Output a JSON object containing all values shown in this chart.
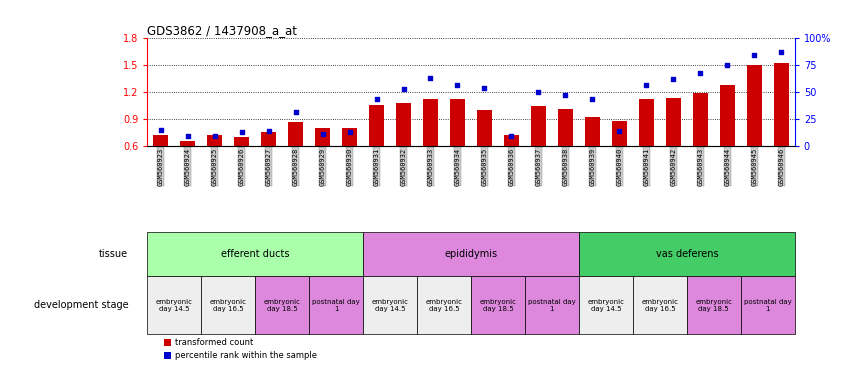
{
  "title": "GDS3862 / 1437908_a_at",
  "samples": [
    "GSM560923",
    "GSM560924",
    "GSM560925",
    "GSM560926",
    "GSM560927",
    "GSM560928",
    "GSM560929",
    "GSM560930",
    "GSM560931",
    "GSM560932",
    "GSM560933",
    "GSM560934",
    "GSM560935",
    "GSM560936",
    "GSM560937",
    "GSM560938",
    "GSM560939",
    "GSM560940",
    "GSM560941",
    "GSM560942",
    "GSM560943",
    "GSM560944",
    "GSM560945",
    "GSM560946"
  ],
  "bar_values": [
    0.72,
    0.65,
    0.72,
    0.7,
    0.76,
    0.87,
    0.8,
    0.8,
    1.06,
    1.08,
    1.12,
    1.12,
    1.0,
    0.72,
    1.05,
    1.01,
    0.92,
    0.88,
    1.12,
    1.13,
    1.19,
    1.28,
    1.5,
    1.52
  ],
  "scatter_values": [
    15,
    9,
    9,
    13,
    14,
    32,
    11,
    13,
    44,
    53,
    63,
    57,
    54,
    9,
    50,
    47,
    44,
    14,
    57,
    62,
    68,
    75,
    85,
    87
  ],
  "ylim_left": [
    0.6,
    1.8
  ],
  "ylim_right": [
    0,
    100
  ],
  "yticks_left": [
    0.6,
    0.9,
    1.2,
    1.5,
    1.8
  ],
  "ytick_labels_left": [
    "0.6",
    "0.9",
    "1.2",
    "1.5",
    "1.8"
  ],
  "yticks_right": [
    0,
    25,
    50,
    75,
    100
  ],
  "ytick_labels_right": [
    "0",
    "25",
    "50",
    "75",
    "100%"
  ],
  "bar_color": "#cc0000",
  "bar_bottom": 0.6,
  "scatter_color": "#0000cc",
  "dot_size": 10,
  "tissue_groups": [
    {
      "label": "efferent ducts",
      "start": 0,
      "end": 8,
      "color": "#aaffaa"
    },
    {
      "label": "epididymis",
      "start": 8,
      "end": 16,
      "color": "#dd88dd"
    },
    {
      "label": "vas deferens",
      "start": 16,
      "end": 24,
      "color": "#44cc66"
    }
  ],
  "dev_stage_groups": [
    {
      "label": "embryonic\nday 14.5",
      "start": 0,
      "end": 2,
      "color": "#eeeeee"
    },
    {
      "label": "embryonic\nday 16.5",
      "start": 2,
      "end": 4,
      "color": "#eeeeee"
    },
    {
      "label": "embryonic\nday 18.5",
      "start": 4,
      "end": 6,
      "color": "#dd88dd"
    },
    {
      "label": "postnatal day\n1",
      "start": 6,
      "end": 8,
      "color": "#dd88dd"
    },
    {
      "label": "embryonic\nday 14.5",
      "start": 8,
      "end": 10,
      "color": "#eeeeee"
    },
    {
      "label": "embryonic\nday 16.5",
      "start": 10,
      "end": 12,
      "color": "#eeeeee"
    },
    {
      "label": "embryonic\nday 18.5",
      "start": 12,
      "end": 14,
      "color": "#dd88dd"
    },
    {
      "label": "postnatal day\n1",
      "start": 14,
      "end": 16,
      "color": "#dd88dd"
    },
    {
      "label": "embryonic\nday 14.5",
      "start": 16,
      "end": 18,
      "color": "#eeeeee"
    },
    {
      "label": "embryonic\nday 16.5",
      "start": 18,
      "end": 20,
      "color": "#eeeeee"
    },
    {
      "label": "embryonic\nday 18.5",
      "start": 20,
      "end": 22,
      "color": "#dd88dd"
    },
    {
      "label": "postnatal day\n1",
      "start": 22,
      "end": 24,
      "color": "#dd88dd"
    }
  ],
  "tissue_label": "tissue",
  "dev_label": "development stage",
  "legend_bar": "transformed count",
  "legend_scatter": "percentile rank within the sample",
  "xtick_bg": "#cccccc",
  "fig_width": 8.41,
  "fig_height": 3.84,
  "fig_dpi": 100
}
